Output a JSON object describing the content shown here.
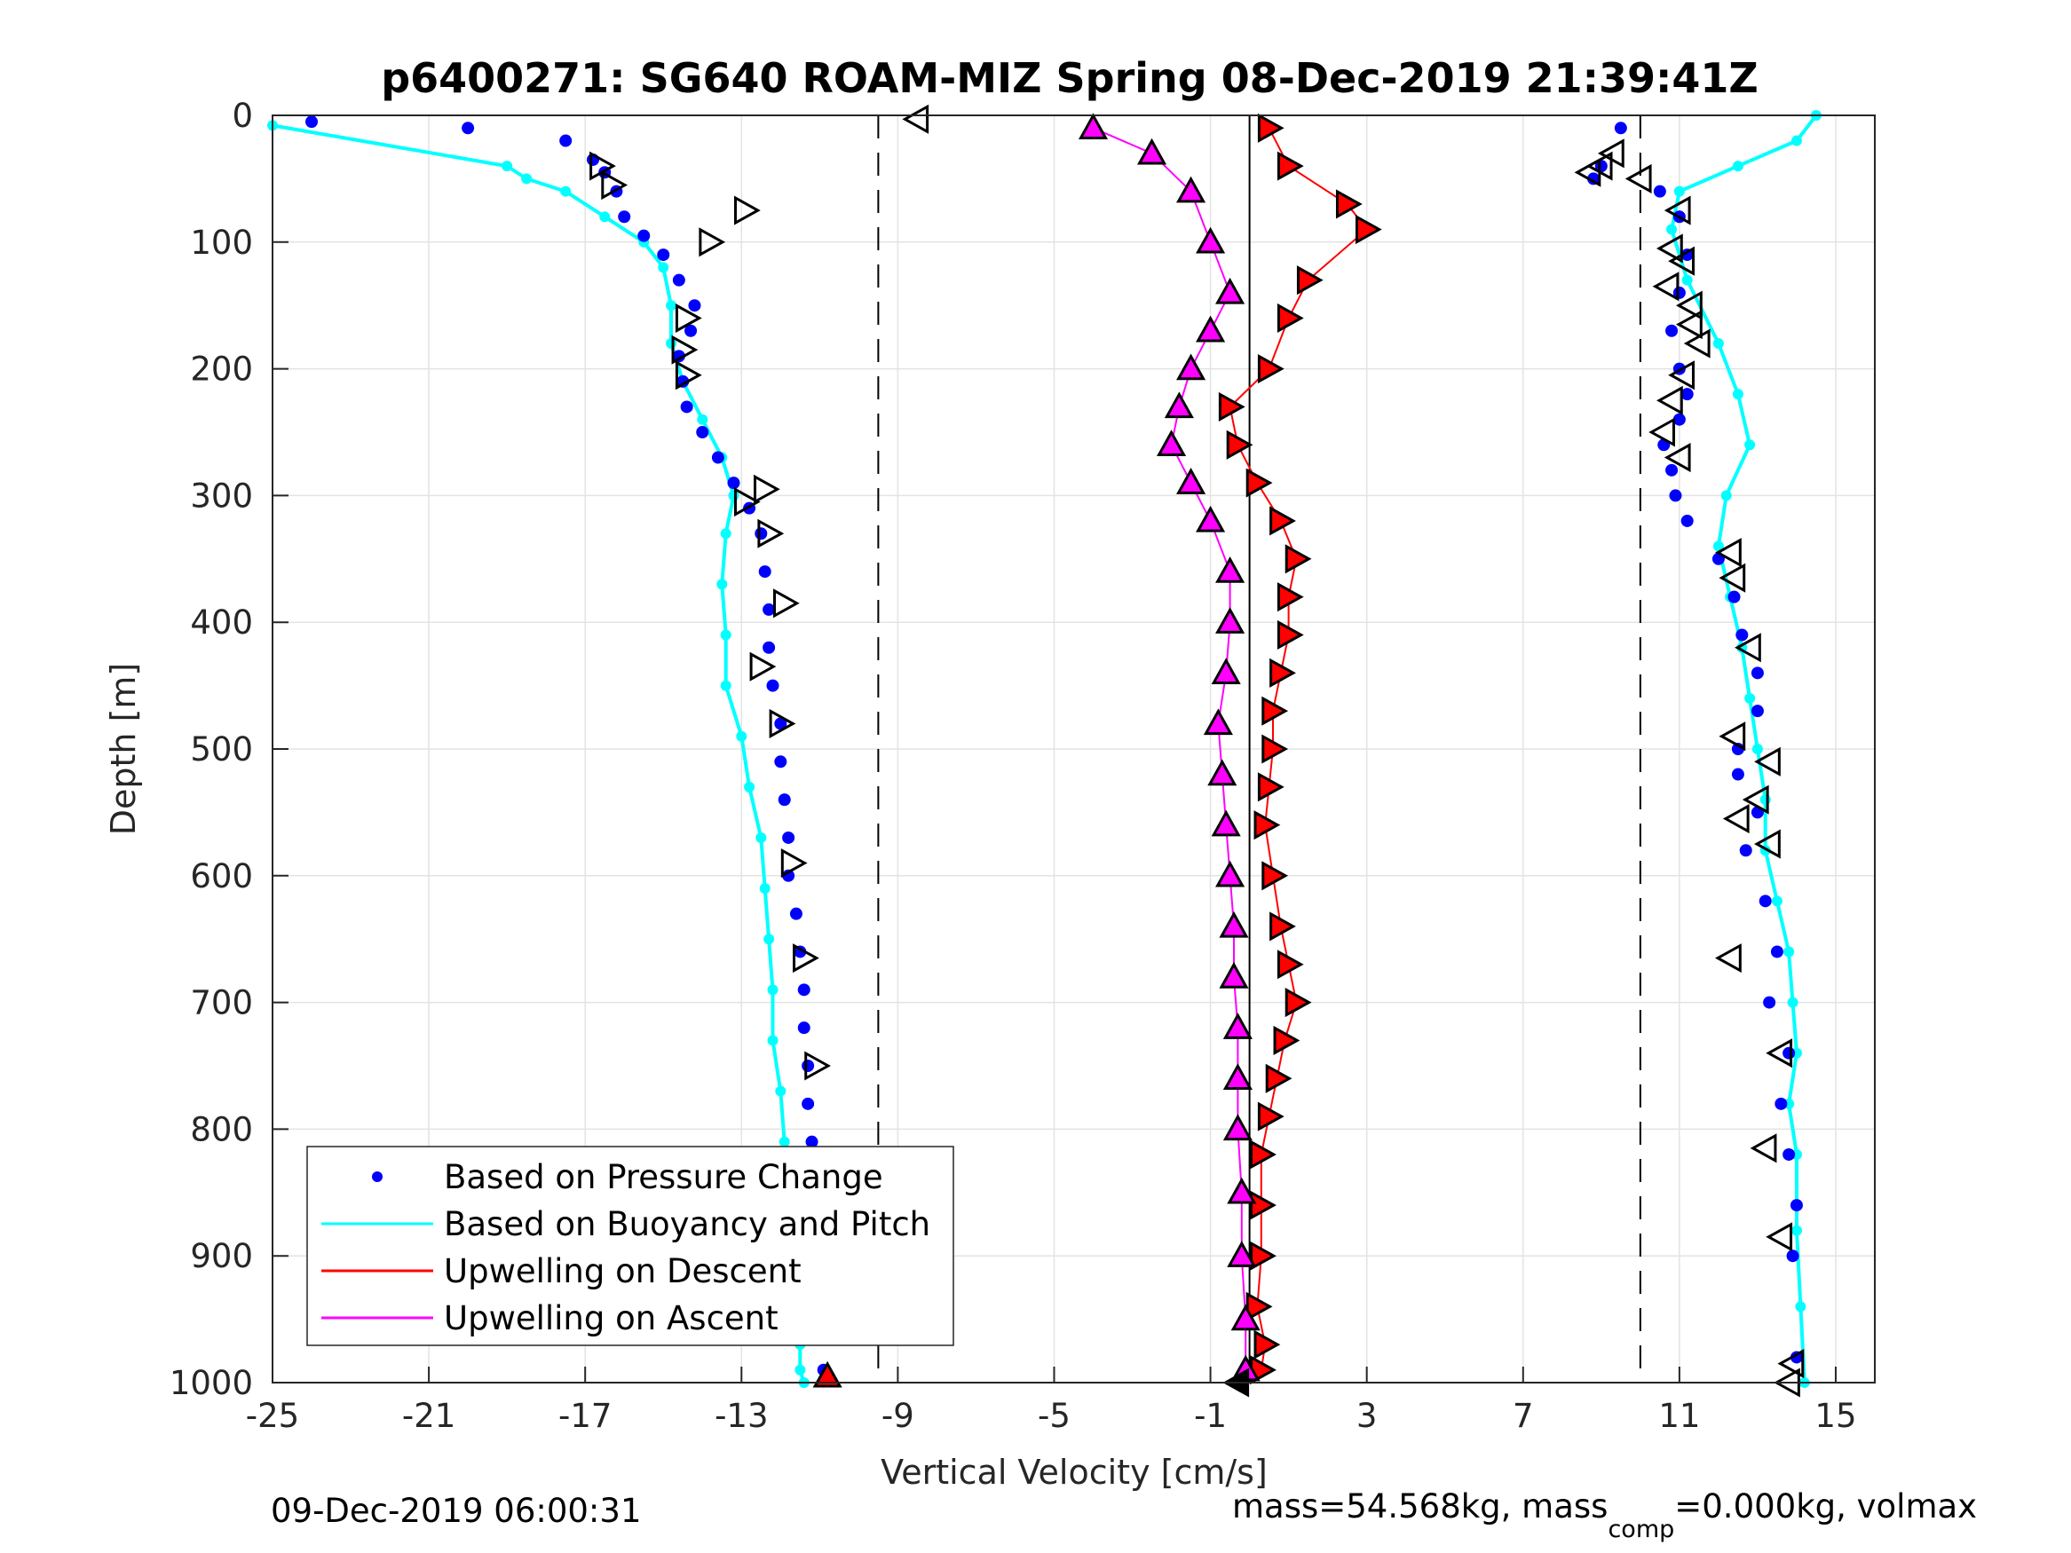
{
  "chart_data": {
    "type": "scatter",
    "title": "p6400271: SG640 ROAM-MIZ Spring 08-Dec-2019 21:39:41Z",
    "xlabel": "Vertical Velocity [cm/s]",
    "ylabel": "Depth [m]",
    "xlim": [
      -25,
      16
    ],
    "ylim": [
      0,
      1000
    ],
    "y_reversed": true,
    "grid": true,
    "x_ticks": [
      -25,
      -21,
      -17,
      -13,
      -9,
      -5,
      -1,
      3,
      7,
      11,
      15
    ],
    "y_ticks": [
      0,
      100,
      200,
      300,
      400,
      500,
      600,
      700,
      800,
      900,
      1000
    ],
    "dashed_reference_lines": [
      -9.5,
      10
    ],
    "solid_reference_line": 0,
    "legend_position": "bottom-left",
    "legend": [
      {
        "label": "Based on Pressure Change",
        "color": "#0000ff",
        "style": "dots"
      },
      {
        "label": "Based on Buoyancy and Pitch",
        "color": "#00ffff",
        "style": "line"
      },
      {
        "label": "Upwelling on Descent",
        "color": "#ff0000",
        "style": "line"
      },
      {
        "label": "Upwelling on Ascent",
        "color": "#ff00ff",
        "style": "line"
      }
    ],
    "colors": {
      "pressure": "#0000ff",
      "buoyancy": "#00ffff",
      "descent": "#ff0000",
      "ascent": "#ff00ff",
      "grid": "#e3e3e3",
      "marker_edge": "#000000"
    },
    "series": [
      {
        "name": "Based on Pressure Change",
        "note_dive": "descent profile",
        "x_dive": [
          -24,
          -20,
          -17.5,
          -16.8,
          -16.5,
          -16.2,
          -16,
          -15.5,
          -15,
          -14.6,
          -14.2,
          -14.3,
          -14.6,
          -14.5,
          -14.4,
          -14,
          -13.6,
          -13.2,
          -12.8,
          -12.5,
          -12.4,
          -12.3,
          -12.3,
          -12.2,
          -12,
          -12,
          -11.9,
          -11.8,
          -11.8,
          -11.6,
          -11.5,
          -11.4,
          -11.4,
          -11.3,
          -11.3,
          -11.2,
          -11.2,
          -11.1,
          -11.0,
          -11.0,
          -10.9
        ],
        "y_dive": [
          5,
          10,
          20,
          35,
          45,
          60,
          80,
          95,
          110,
          130,
          150,
          170,
          190,
          210,
          230,
          250,
          270,
          290,
          310,
          330,
          360,
          390,
          420,
          450,
          480,
          510,
          540,
          570,
          600,
          630,
          660,
          690,
          720,
          750,
          780,
          810,
          850,
          880,
          910,
          950,
          990
        ],
        "note_climb": "ascent profile",
        "x_climb": [
          9.5,
          9.0,
          8.8,
          10.5,
          11,
          11.2,
          11,
          10.8,
          11,
          11.2,
          11,
          10.6,
          10.8,
          10.9,
          11.2,
          12,
          12.4,
          12.6,
          13,
          13,
          12.5,
          12.5,
          13,
          12.7,
          13.2,
          13.5,
          13.3,
          13.8,
          13.6,
          13.8,
          14,
          13.9,
          14
        ],
        "y_climb": [
          10,
          40,
          50,
          60,
          80,
          110,
          140,
          170,
          200,
          220,
          240,
          260,
          280,
          300,
          320,
          350,
          380,
          410,
          440,
          470,
          500,
          520,
          550,
          580,
          620,
          660,
          700,
          740,
          780,
          820,
          860,
          900,
          980
        ]
      },
      {
        "name": "Based on Buoyancy and Pitch",
        "x_dive": [
          -25,
          -19,
          -18.5,
          -17.5,
          -16.5,
          -15.5,
          -15,
          -14.8,
          -14.8,
          -14.5,
          -14.0,
          -13.5,
          -13.2,
          -13.4,
          -13.5,
          -13.4,
          -13.4,
          -13.0,
          -12.8,
          -12.5,
          -12.4,
          -12.3,
          -12.2,
          -12.2,
          -12.0,
          -11.9,
          -11.8,
          -11.6,
          -11.6,
          -11.5,
          -11.5,
          -11.5,
          -11.4
        ],
        "y_dive": [
          8,
          40,
          50,
          60,
          80,
          100,
          120,
          150,
          180,
          210,
          240,
          270,
          300,
          330,
          370,
          410,
          450,
          490,
          530,
          570,
          610,
          650,
          690,
          730,
          770,
          810,
          850,
          880,
          910,
          940,
          970,
          990,
          1000
        ],
        "x_climb": [
          14.5,
          14.0,
          12.5,
          11.0,
          10.8,
          11.2,
          12.0,
          12.5,
          12.8,
          12.2,
          12.0,
          12.3,
          12.6,
          12.8,
          13.0,
          13.2,
          13.2,
          13.5,
          13.8,
          13.9,
          14.0,
          13.8,
          14.0,
          14.0,
          14.1,
          14.2
        ],
        "y_climb": [
          0,
          20,
          40,
          60,
          90,
          130,
          180,
          220,
          260,
          300,
          340,
          380,
          420,
          460,
          500,
          540,
          580,
          620,
          660,
          700,
          740,
          780,
          820,
          880,
          940,
          1000
        ]
      },
      {
        "name": "Upwelling on Descent",
        "x": [
          0.5,
          1.0,
          2.5,
          3.0,
          1.5,
          1.0,
          0.5,
          -0.5,
          -0.3,
          0.2,
          0.8,
          1.2,
          1.0,
          1.0,
          0.8,
          0.6,
          0.6,
          0.5,
          0.4,
          0.6,
          0.8,
          1.0,
          1.2,
          0.9,
          0.7,
          0.5,
          0.3,
          0.3,
          0.3,
          0.2,
          0.4,
          0.3
        ],
        "y": [
          10,
          40,
          70,
          90,
          130,
          160,
          200,
          230,
          260,
          290,
          320,
          350,
          380,
          410,
          440,
          470,
          500,
          530,
          560,
          600,
          640,
          670,
          700,
          730,
          760,
          790,
          820,
          860,
          900,
          940,
          970,
          990
        ]
      },
      {
        "name": "Upwelling on Ascent",
        "x": [
          -4.0,
          -2.5,
          -1.5,
          -1.0,
          -0.5,
          -1.0,
          -1.5,
          -1.8,
          -2.0,
          -1.5,
          -1.0,
          -0.5,
          -0.5,
          -0.6,
          -0.8,
          -0.7,
          -0.6,
          -0.5,
          -0.4,
          -0.4,
          -0.3,
          -0.3,
          -0.3,
          -0.2,
          -0.2,
          -0.1,
          -0.1
        ],
        "y": [
          10,
          30,
          60,
          100,
          140,
          170,
          200,
          230,
          260,
          290,
          320,
          360,
          400,
          440,
          480,
          520,
          560,
          600,
          640,
          680,
          720,
          760,
          800,
          850,
          900,
          950,
          990
        ]
      },
      {
        "name": "markers",
        "dive_triangles_x": [
          -16.6,
          -16.3,
          -12.9,
          -13.8,
          -14.4,
          -14.5,
          -14.4,
          -12.4,
          -12.9,
          -12.3,
          -11.9,
          -12.5,
          -12.0,
          -11.7,
          -11.4,
          -11.1,
          -11.8,
          -11.0,
          -11.1
        ],
        "dive_triangles_y": [
          40,
          55,
          75,
          100,
          160,
          185,
          205,
          295,
          305,
          330,
          385,
          435,
          480,
          590,
          665,
          750,
          870,
          905,
          935
        ],
        "climb_triangles_x": [
          9.3,
          9.0,
          8.7,
          10.0,
          11.0,
          10.8,
          11.1,
          10.7,
          11.3,
          11.3,
          11.5,
          11.1,
          10.8,
          10.6,
          11.0,
          12.3,
          12.4,
          12.8,
          12.4,
          13.3,
          13.0,
          12.5,
          13.3,
          12.3,
          13.6,
          13.2,
          13.6,
          13.9,
          13.8
        ],
        "climb_triangles_y": [
          30,
          40,
          45,
          50,
          75,
          105,
          115,
          135,
          150,
          165,
          180,
          205,
          225,
          250,
          270,
          345,
          365,
          420,
          490,
          510,
          540,
          555,
          575,
          665,
          740,
          815,
          885,
          985,
          1000
        ],
        "start_triangle": [
          -8.5,
          3
        ],
        "end_triangle_dive": [
          -10.8,
          995
        ],
        "end_triangle_center": [
          -0.3,
          1000
        ]
      }
    ]
  },
  "footer": {
    "timestamp": "09-Dec-2019 06:00:31",
    "mass_text_a": "mass=54.568kg, mass",
    "mass_sub": "comp",
    "mass_text_b": "=0.000kg, volmax"
  }
}
